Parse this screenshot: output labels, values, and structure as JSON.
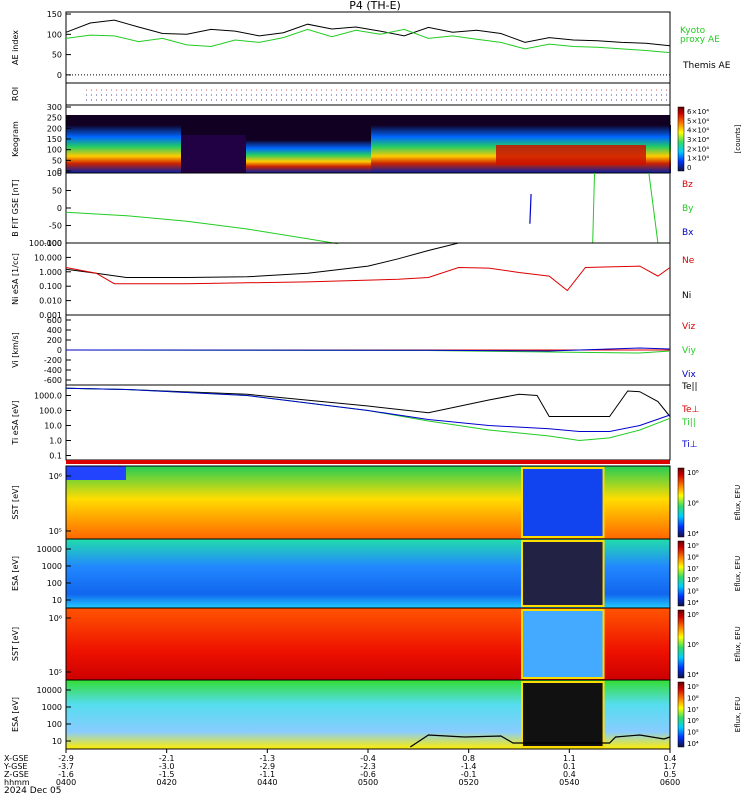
{
  "title": "P4 (TH-E)",
  "colors": {
    "black": "#000000",
    "green": "#22cc22",
    "red": "#dd0000",
    "blue": "#0000cc",
    "frame": "#000000"
  },
  "colorbar_gradient": [
    "#111144",
    "#0033ff",
    "#00ccff",
    "#33dd66",
    "#ffff00",
    "#ff7700",
    "#cc0000",
    "#660000"
  ],
  "chart_data": [
    {
      "type": "line",
      "panel": "ae",
      "ylabel": "AE index",
      "yticks": [
        "150",
        "100",
        "50",
        "0"
      ],
      "ylim": [
        -20,
        155
      ],
      "x": [
        0,
        4,
        8,
        12,
        16,
        20,
        24,
        28,
        32,
        36,
        40,
        44,
        48,
        52,
        56,
        60,
        64,
        68,
        72,
        76,
        80,
        84,
        88,
        92,
        96,
        100
      ],
      "series": [
        {
          "name": "Themis AE",
          "color_key": "black",
          "values": [
            105,
            128,
            135,
            118,
            102,
            100,
            112,
            108,
            96,
            104,
            125,
            113,
            118,
            108,
            96,
            117,
            105,
            110,
            102,
            80,
            92,
            86,
            84,
            80,
            78,
            72
          ]
        },
        {
          "name": "Kyoto proxy AE",
          "color_key": "green",
          "values": [
            90,
            98,
            96,
            82,
            90,
            74,
            70,
            86,
            80,
            92,
            112,
            94,
            110,
            100,
            112,
            90,
            96,
            88,
            80,
            64,
            76,
            70,
            68,
            64,
            60,
            55
          ]
        }
      ]
    },
    {
      "type": "heatmap",
      "panel": "roi",
      "ylabel": "ROI"
    },
    {
      "type": "heatmap",
      "panel": "keogram",
      "ylabel": "Keogram",
      "yticks": [
        "300",
        "250",
        "200",
        "150",
        "100",
        "50",
        "0"
      ],
      "colorbar_label": "[counts]",
      "colorbar_ticks": [
        "6×10⁴",
        "5×10⁴",
        "4×10⁴",
        "3×10⁴",
        "2×10⁴",
        "1×10⁴",
        "0"
      ]
    },
    {
      "type": "line",
      "panel": "bfield",
      "ylabel": "B FIT GSE [nT]",
      "yticks": [
        "100",
        "50",
        "0",
        "-50",
        "-100"
      ],
      "ylim": [
        -100,
        100
      ],
      "series_labels": [
        {
          "name": "Bz",
          "color_key": "red"
        },
        {
          "name": "By",
          "color_key": "green"
        },
        {
          "name": "Bx",
          "color_key": "blue"
        }
      ],
      "series": [
        {
          "name": "By",
          "color_key": "green",
          "x": [
            0,
            10,
            20,
            30,
            40,
            45
          ],
          "values": [
            -12,
            -22,
            -38,
            -60,
            -88,
            -102
          ]
        }
      ]
    },
    {
      "type": "line",
      "panel": "density",
      "ylabel": "Ni eSA [1/cc]",
      "yticks": [
        "100.000",
        "10.000",
        "1.000",
        "0.100",
        "0.010",
        "0.001"
      ],
      "series_labels": [
        {
          "name": "Ne",
          "color_key": "red"
        },
        {
          "name": "Ni",
          "color_key": "black"
        }
      ],
      "series": [
        {
          "name": "Ni",
          "color_key": "black",
          "x": [
            0,
            5,
            10,
            20,
            30,
            40,
            50,
            55,
            60,
            65
          ],
          "values": [
            1.5,
            0.8,
            0.4,
            0.4,
            0.45,
            0.8,
            2.5,
            8,
            30,
            110
          ]
        },
        {
          "name": "Ne",
          "color_key": "red",
          "x": [
            0,
            5,
            8,
            20,
            40,
            55,
            60,
            65,
            70,
            75,
            80,
            83,
            86,
            90,
            95,
            98,
            100
          ],
          "values": [
            2,
            0.8,
            0.15,
            0.15,
            0.2,
            0.3,
            0.4,
            2,
            1.8,
            0.9,
            0.5,
            0.05,
            2,
            2.2,
            2.5,
            0.5,
            2
          ]
        }
      ]
    },
    {
      "type": "line",
      "panel": "velocity",
      "ylabel": "Vi [km/s]",
      "yticks": [
        "600",
        "400",
        "200",
        "0",
        "-200",
        "-400",
        "-600"
      ],
      "ylim": [
        -700,
        700
      ],
      "series_labels": [
        {
          "name": "Viz",
          "color_key": "red"
        },
        {
          "name": "Viy",
          "color_key": "green"
        },
        {
          "name": "Vix",
          "color_key": "blue"
        }
      ],
      "series": [
        {
          "name": "Viz",
          "color_key": "red",
          "x": [
            0,
            50,
            100
          ],
          "values": [
            0,
            0,
            0
          ]
        },
        {
          "name": "Viy",
          "color_key": "green",
          "x": [
            0,
            60,
            80,
            95,
            100
          ],
          "values": [
            0,
            -10,
            -40,
            -60,
            -20
          ]
        },
        {
          "name": "Vix",
          "color_key": "blue",
          "x": [
            0,
            60,
            80,
            95,
            100
          ],
          "values": [
            0,
            -5,
            -20,
            40,
            20
          ]
        }
      ]
    },
    {
      "type": "line",
      "panel": "temperature",
      "ylabel": "Ti eSA [eV]",
      "yticks": [
        "1000.0",
        "100.0",
        "10.0",
        "1.0",
        "0.1"
      ],
      "series_labels": [
        {
          "name": "Te||",
          "color_key": "black"
        },
        {
          "name": "Te⊥",
          "color_key": "red"
        },
        {
          "name": "Ti||",
          "color_key": "green"
        },
        {
          "name": "Ti⊥",
          "color_key": "blue"
        }
      ],
      "series": [
        {
          "name": "Te||",
          "color_key": "black",
          "x": [
            0,
            10,
            30,
            50,
            60,
            70,
            75,
            78,
            80,
            82,
            85,
            90,
            93,
            95,
            98,
            100
          ],
          "values": [
            3000,
            2500,
            1200,
            200,
            70,
            500,
            1200,
            1000,
            40,
            40,
            40,
            40,
            2000,
            1800,
            400,
            40
          ]
        },
        {
          "name": "Ti||",
          "color_key": "green",
          "x": [
            0,
            10,
            30,
            50,
            60,
            70,
            80,
            85,
            90,
            95,
            100
          ],
          "values": [
            3000,
            2500,
            1000,
            100,
            20,
            5,
            2,
            1,
            1.5,
            5,
            30
          ]
        },
        {
          "name": "Ti⊥",
          "color_key": "blue",
          "x": [
            0,
            10,
            30,
            50,
            60,
            70,
            80,
            85,
            90,
            95,
            100
          ],
          "values": [
            3000,
            2500,
            1000,
            100,
            25,
            10,
            6,
            4,
            4,
            10,
            50
          ]
        }
      ]
    },
    {
      "type": "heatmap",
      "panel": "sst_e",
      "ylabel": "SST [eV]",
      "yticks": [
        "10⁶",
        "10⁵"
      ],
      "colorbar_label": "Eflux, EFU",
      "colorbar_ticks": [
        "10⁸",
        "10⁶",
        "10⁴"
      ]
    },
    {
      "type": "heatmap",
      "panel": "esa_e",
      "ylabel": "ESA [eV]",
      "yticks": [
        "10000",
        "1000",
        "100",
        "10"
      ],
      "colorbar_label": "Eflux, EFU",
      "colorbar_ticks": [
        "10⁹",
        "10⁸",
        "10⁷",
        "10⁶",
        "10⁵",
        "10⁴"
      ]
    },
    {
      "type": "heatmap",
      "panel": "sst_i",
      "ylabel": "SST [eV]",
      "yticks": [
        "10⁶",
        "10⁵"
      ],
      "colorbar_label": "Eflux, EFU",
      "colorbar_ticks": [
        "10⁸",
        "10⁶",
        "10⁴"
      ]
    },
    {
      "type": "heatmap",
      "panel": "esa_i",
      "ylabel": "ESA [eV]",
      "yticks": [
        "10000",
        "1000",
        "100",
        "10"
      ],
      "colorbar_label": "Eflux, EFU",
      "colorbar_ticks": [
        "10⁹",
        "10⁸",
        "10⁷",
        "10⁶",
        "10⁵",
        "10⁴"
      ]
    }
  ],
  "legend_labels": {
    "kyoto": "Kyoto\nproxy AE",
    "themis": "Themis AE"
  },
  "orbit_rows": [
    {
      "label": "X-GSE",
      "values": [
        "-2.9",
        "-2.1",
        "-1.3",
        "-0.4",
        "0.8",
        "1.1",
        "0.4"
      ]
    },
    {
      "label": "Y-GSE",
      "values": [
        "-3.7",
        "-3.0",
        "-2.9",
        "-2.3",
        "-1.4",
        "0.1",
        "1.7"
      ]
    },
    {
      "label": "Z-GSE",
      "values": [
        "-1.6",
        "-1.5",
        "-1.1",
        "-0.6",
        "-0.1",
        "0.4",
        "0.5"
      ]
    },
    {
      "label": "hhmm",
      "values": [
        "0400",
        "0420",
        "0440",
        "0500",
        "0520",
        "0540",
        "0600"
      ]
    }
  ],
  "date": "2024 Dec 05"
}
